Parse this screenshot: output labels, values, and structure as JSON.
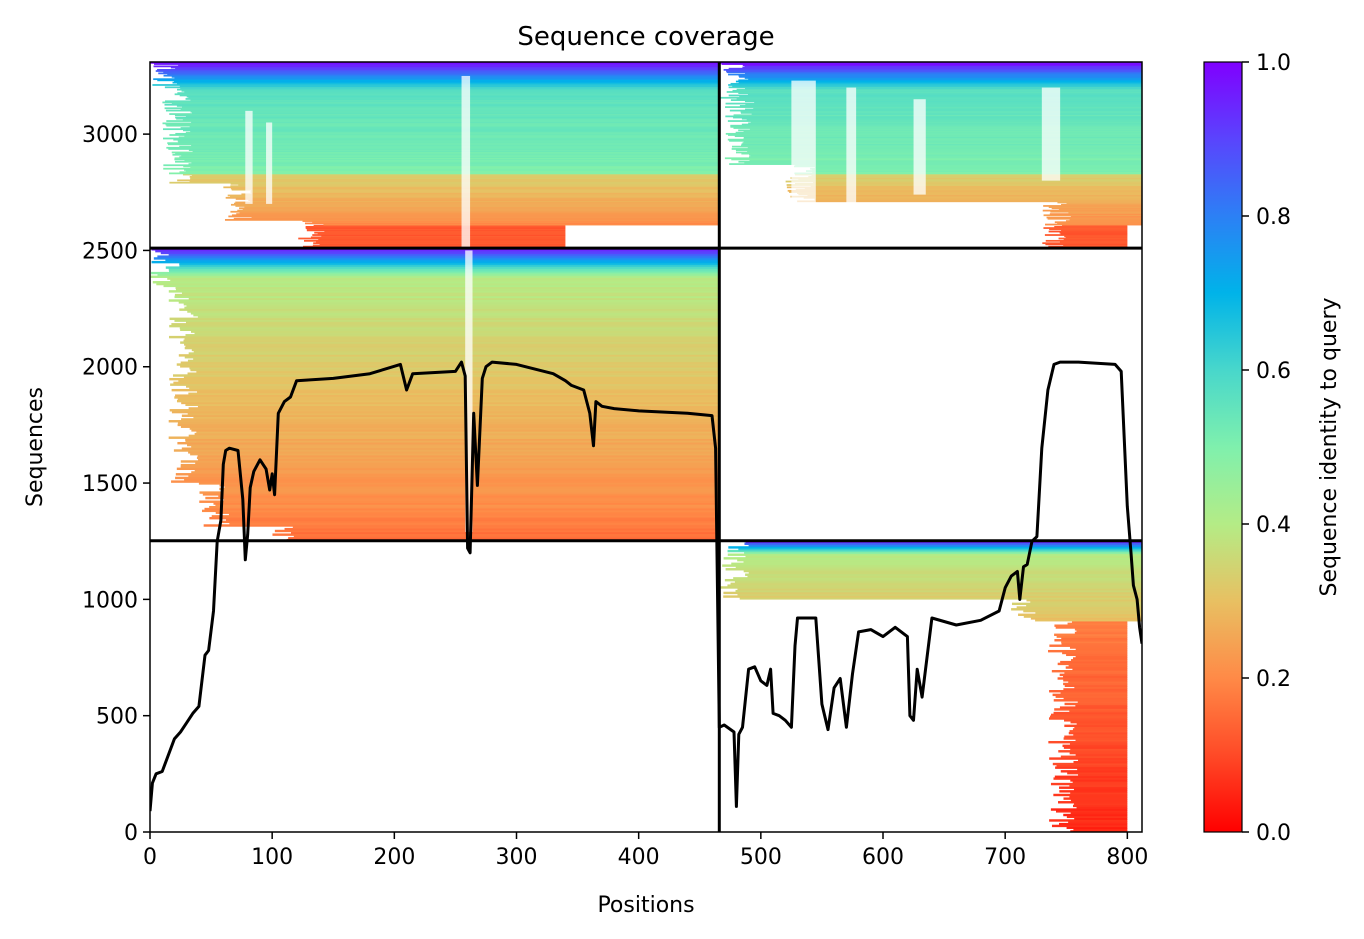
{
  "chart_data": {
    "type": "heatmap",
    "title": "Sequence coverage",
    "xlabel": "Positions",
    "ylabel": "Sequences",
    "xlim": [
      0,
      812
    ],
    "ylim": [
      0,
      3310
    ],
    "xticks": [
      0,
      100,
      200,
      300,
      400,
      500,
      600,
      700,
      800
    ],
    "yticks": [
      0,
      500,
      1000,
      1500,
      2000,
      2500,
      3000
    ],
    "colorbar": {
      "label": "Sequence identity to query",
      "ticks": [
        0.0,
        0.2,
        0.4,
        0.6,
        0.8,
        1.0
      ],
      "tick_labels": [
        "0.0",
        "0.2",
        "0.4",
        "0.6",
        "0.8",
        "1.0"
      ],
      "colormap": "rainbow_r",
      "colors": [
        "#ff0000",
        "#ff8a47",
        "#d4d977",
        "#7ff0ad",
        "#2c80f5",
        "#8000ff"
      ]
    },
    "block_boundaries": {
      "x": 466,
      "y": [
        1252,
        2510
      ]
    },
    "blocks": [
      {
        "name": "top-left",
        "x": [
          0,
          466
        ],
        "y": [
          2510,
          3310
        ],
        "identity_range": [
          0.1,
          1.0
        ]
      },
      {
        "name": "top-right",
        "x": [
          466,
          812
        ],
        "y": [
          2510,
          3310
        ],
        "identity_range": [
          0.1,
          1.0
        ]
      },
      {
        "name": "middle-left",
        "x": [
          0,
          466
        ],
        "y": [
          1252,
          2510
        ],
        "identity_range": [
          0.15,
          1.0
        ]
      },
      {
        "name": "bottom-right",
        "x": [
          466,
          812
        ],
        "y": [
          0,
          1252
        ],
        "identity_range": [
          0.05,
          1.0
        ]
      }
    ],
    "coverage_line": {
      "color": "#000000",
      "x": [
        0,
        2,
        5,
        10,
        20,
        25,
        30,
        35,
        40,
        45,
        48,
        52,
        55,
        58,
        60,
        62,
        65,
        72,
        76,
        78,
        80,
        82,
        85,
        90,
        95,
        98,
        100,
        102,
        105,
        110,
        115,
        120,
        150,
        180,
        205,
        210,
        215,
        250,
        255,
        258,
        260,
        262,
        265,
        268,
        272,
        275,
        280,
        300,
        330,
        340,
        345,
        355,
        360,
        363,
        365,
        370,
        380,
        400,
        440,
        460,
        463,
        466,
        470,
        478,
        480,
        482,
        485,
        490,
        495,
        500,
        505,
        508,
        510,
        515,
        520,
        525,
        528,
        530,
        535,
        545,
        550,
        555,
        560,
        565,
        570,
        575,
        580,
        590,
        600,
        610,
        620,
        622,
        625,
        628,
        632,
        640,
        660,
        680,
        695,
        700,
        705,
        710,
        712,
        715,
        718,
        722,
        726,
        730,
        735,
        740,
        745,
        760,
        790,
        795,
        800,
        803,
        805,
        808,
        810,
        812
      ],
      "y": [
        90,
        210,
        250,
        260,
        400,
        430,
        470,
        510,
        540,
        760,
        780,
        950,
        1250,
        1340,
        1580,
        1640,
        1650,
        1640,
        1430,
        1170,
        1280,
        1480,
        1550,
        1600,
        1560,
        1470,
        1540,
        1450,
        1800,
        1850,
        1870,
        1940,
        1950,
        1970,
        2010,
        1900,
        1970,
        1980,
        2020,
        1960,
        1220,
        1200,
        1800,
        1490,
        1950,
        2000,
        2020,
        2010,
        1970,
        1940,
        1920,
        1900,
        1800,
        1660,
        1850,
        1830,
        1820,
        1810,
        1800,
        1790,
        1650,
        450,
        460,
        430,
        110,
        420,
        450,
        700,
        710,
        650,
        630,
        700,
        510,
        500,
        480,
        450,
        800,
        920,
        920,
        920,
        550,
        440,
        620,
        660,
        450,
        680,
        860,
        870,
        840,
        880,
        840,
        500,
        480,
        700,
        580,
        920,
        890,
        910,
        950,
        1050,
        1100,
        1120,
        1000,
        1140,
        1150,
        1250,
        1270,
        1650,
        1900,
        2010,
        2020,
        2020,
        2010,
        1980,
        1400,
        1200,
        1060,
        1000,
        880,
        810
      ]
    }
  }
}
